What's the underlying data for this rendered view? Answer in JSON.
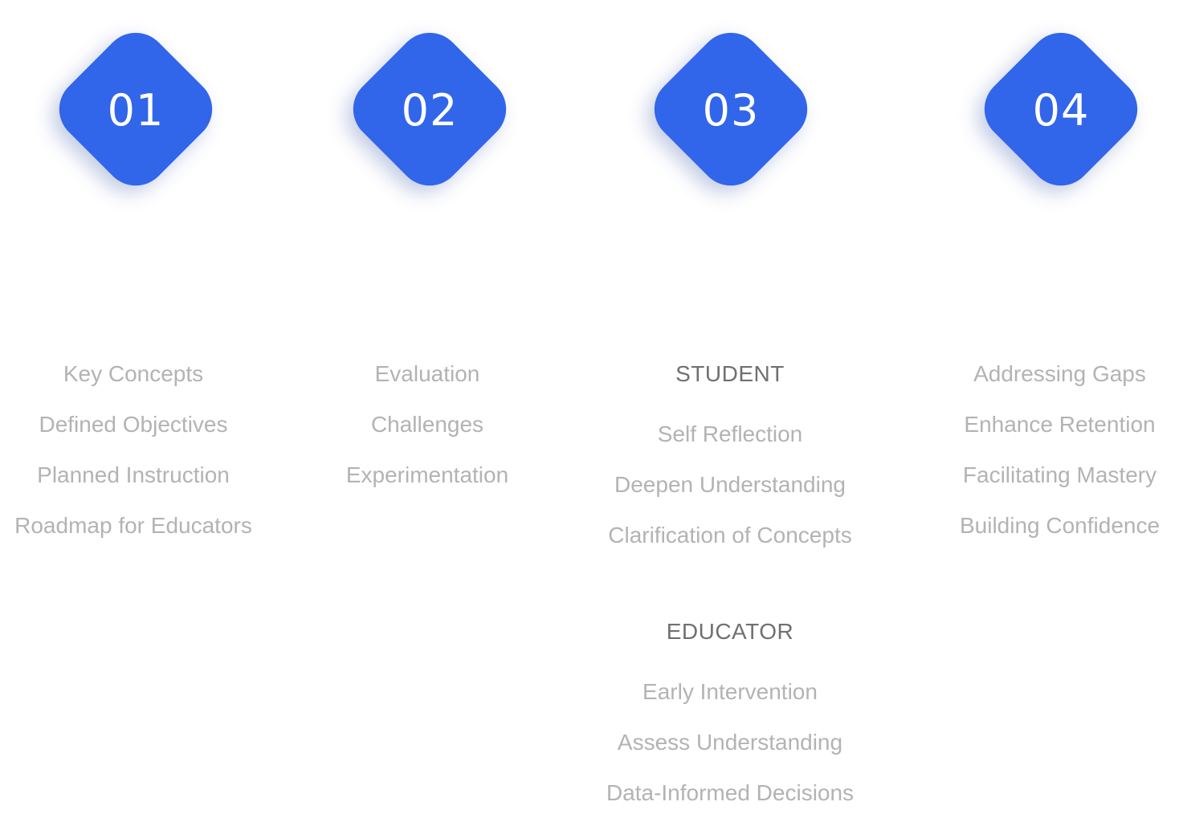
{
  "accent_color": "#3166ea",
  "steps": [
    {
      "number": "01"
    },
    {
      "number": "02"
    },
    {
      "number": "03"
    },
    {
      "number": "04"
    }
  ],
  "columns": [
    {
      "items": [
        "Key Concepts",
        "Defined Objectives",
        "Planned Instruction",
        "Roadmap for Educators"
      ]
    },
    {
      "items": [
        "Evaluation",
        "Challenges",
        "Experimentation"
      ]
    },
    {
      "groups": [
        {
          "heading": "STUDENT",
          "items": [
            "Self Reflection",
            "Deepen Understanding",
            "Clarification of Concepts"
          ]
        },
        {
          "heading": "EDUCATOR",
          "items": [
            "Early Intervention",
            "Assess Understanding",
            "Data-Informed Decisions"
          ]
        }
      ]
    },
    {
      "items": [
        "Addressing Gaps",
        "Enhance Retention",
        "Facilitating Mastery",
        "Building Confidence"
      ]
    }
  ]
}
